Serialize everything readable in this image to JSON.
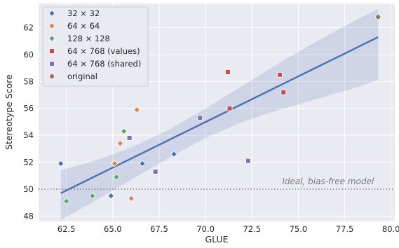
{
  "chart_data": {
    "type": "scatter",
    "xlabel": "GLUE",
    "ylabel": "Stereotype Score",
    "xlim": [
      61.0,
      80.2
    ],
    "ylim": [
      47.6,
      63.8
    ],
    "xticks": [
      62.5,
      65.0,
      67.5,
      70.0,
      72.5,
      75.0,
      77.5,
      80.0
    ],
    "xtick_labels": [
      "62.5",
      "65.0",
      "67.5",
      "70.0",
      "72.5",
      "75.0",
      "77.5",
      "80.0"
    ],
    "yticks": [
      48,
      50,
      52,
      54,
      56,
      58,
      60,
      62
    ],
    "ytick_labels": [
      "48",
      "50",
      "52",
      "54",
      "56",
      "58",
      "60",
      "62"
    ],
    "grid": true,
    "legend_position": "top-left",
    "series": [
      {
        "name": "32 × 32",
        "marker": "diamond",
        "color": "#4c72b0",
        "points": [
          [
            62.2,
            51.9
          ],
          [
            64.9,
            49.5
          ],
          [
            66.6,
            51.9
          ],
          [
            68.3,
            52.6
          ]
        ]
      },
      {
        "name": "64 × 64",
        "marker": "diamond",
        "color": "#dd8452",
        "points": [
          [
            65.1,
            51.9
          ],
          [
            65.4,
            53.4
          ],
          [
            66.0,
            49.3
          ],
          [
            66.3,
            55.9
          ]
        ]
      },
      {
        "name": "128 × 128",
        "marker": "diamond",
        "color": "#55a868",
        "points": [
          [
            62.5,
            49.1
          ],
          [
            63.9,
            49.5
          ],
          [
            65.2,
            50.9
          ],
          [
            65.6,
            54.3
          ]
        ]
      },
      {
        "name": "64 × 768 (values)",
        "marker": "square",
        "color": "#c44e52",
        "points": [
          [
            71.2,
            58.7
          ],
          [
            71.3,
            56.0
          ],
          [
            74.0,
            58.5
          ],
          [
            74.2,
            57.2
          ]
        ]
      },
      {
        "name": "64 × 768 (shared)",
        "marker": "square",
        "color": "#8172b3",
        "points": [
          [
            65.9,
            53.8
          ],
          [
            67.3,
            51.3
          ],
          [
            69.7,
            55.3
          ],
          [
            72.3,
            52.1
          ]
        ]
      },
      {
        "name": "original",
        "marker": "circle",
        "color": "#937860",
        "points": [
          [
            79.3,
            62.8
          ]
        ]
      }
    ],
    "regression": {
      "color": "#4c72b0",
      "band_color": "#4c72b0",
      "line": [
        [
          62.2,
          49.7
        ],
        [
          79.3,
          61.3
        ]
      ],
      "ci_upper": [
        [
          62.2,
          51.4
        ],
        [
          64.0,
          52.1
        ],
        [
          66.0,
          53.1
        ],
        [
          68.0,
          54.4
        ],
        [
          70.0,
          56.0
        ],
        [
          72.0,
          57.7
        ],
        [
          74.0,
          59.4
        ],
        [
          76.0,
          61.0
        ],
        [
          78.0,
          62.5
        ],
        [
          79.3,
          63.4
        ]
      ],
      "ci_lower": [
        [
          62.2,
          47.7
        ],
        [
          64.0,
          49.1
        ],
        [
          66.0,
          50.7
        ],
        [
          68.0,
          52.3
        ],
        [
          70.0,
          53.8
        ],
        [
          72.0,
          55.0
        ],
        [
          74.0,
          55.9
        ],
        [
          76.0,
          56.7
        ],
        [
          78.0,
          57.5
        ],
        [
          79.3,
          58.1
        ]
      ]
    },
    "reference_line": {
      "y": 50,
      "style": "dotted",
      "color": "#808080"
    },
    "annotations": [
      {
        "text": "Ideal, bias-free model",
        "x": 79.3,
        "y": 50.35
      }
    ]
  }
}
